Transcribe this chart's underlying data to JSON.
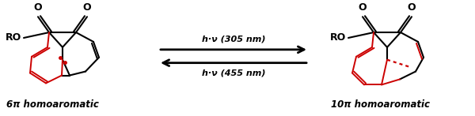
{
  "background_color": "#ffffff",
  "arrow_color": "#000000",
  "arrow_top_text": "h·ν (305 nm)",
  "arrow_bottom_text": "h·ν (455 nm)",
  "label_left": "6π homoaromatic",
  "label_right": "10π homoaromatic",
  "red_color": "#cc0000",
  "black_color": "#000000",
  "fig_width": 6.0,
  "fig_height": 1.47,
  "dpi": 100
}
